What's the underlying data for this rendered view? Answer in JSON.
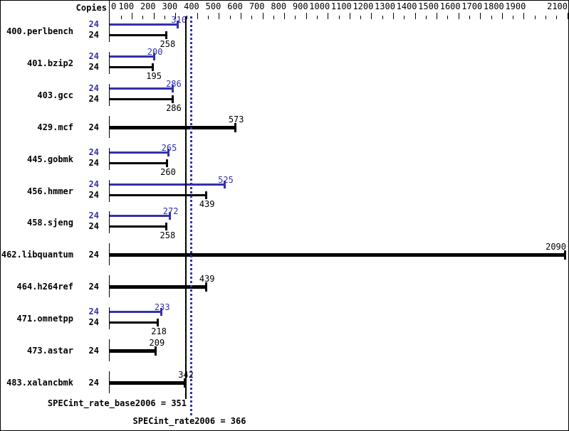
{
  "colors": {
    "accent_blue": "#3232aa",
    "black": "#000000",
    "background": "#ffffff"
  },
  "header": {
    "copies_label": "Copies"
  },
  "axis": {
    "min": 0,
    "max": 2100,
    "major_step": 100,
    "minor_step": 50,
    "tick_labels": [
      0,
      100,
      200,
      300,
      400,
      500,
      600,
      700,
      800,
      900,
      1000,
      1100,
      1200,
      1300,
      1400,
      1500,
      1600,
      1700,
      1800,
      1900,
      2100
    ],
    "unlabeled_minor_major_tick": 2000
  },
  "chart_data": {
    "type": "bar",
    "orientation": "horizontal",
    "xlim": [
      0,
      2100
    ],
    "categories": [
      "400.perlbench",
      "401.bzip2",
      "403.gcc",
      "429.mcf",
      "445.gobmk",
      "456.hmmer",
      "458.sjeng",
      "462.libquantum",
      "464.h264ref",
      "471.omnetpp",
      "473.astar",
      "483.xalancbmk"
    ],
    "copies": [
      24,
      24,
      24,
      24,
      24,
      24,
      24,
      24,
      24,
      24,
      24,
      24
    ],
    "series": [
      {
        "name": "peak",
        "color": "#3232aa",
        "values": [
          310,
          200,
          286,
          null,
          265,
          525,
          272,
          null,
          null,
          233,
          null,
          null
        ]
      },
      {
        "name": "base",
        "color": "#000000",
        "values": [
          258,
          195,
          286,
          573,
          260,
          439,
          258,
          2090,
          439,
          218,
          209,
          342
        ]
      }
    ],
    "reference_lines": [
      {
        "name": "base_median",
        "value": 351,
        "style": "solid",
        "color": "#000000"
      },
      {
        "name": "peak_median",
        "value": 366,
        "style": "dotted",
        "color": "#3232aa"
      }
    ]
  },
  "summary": {
    "base_text": "SPECint_rate_base2006 = 351",
    "peak_text": "SPECint_rate2006 = 366"
  }
}
